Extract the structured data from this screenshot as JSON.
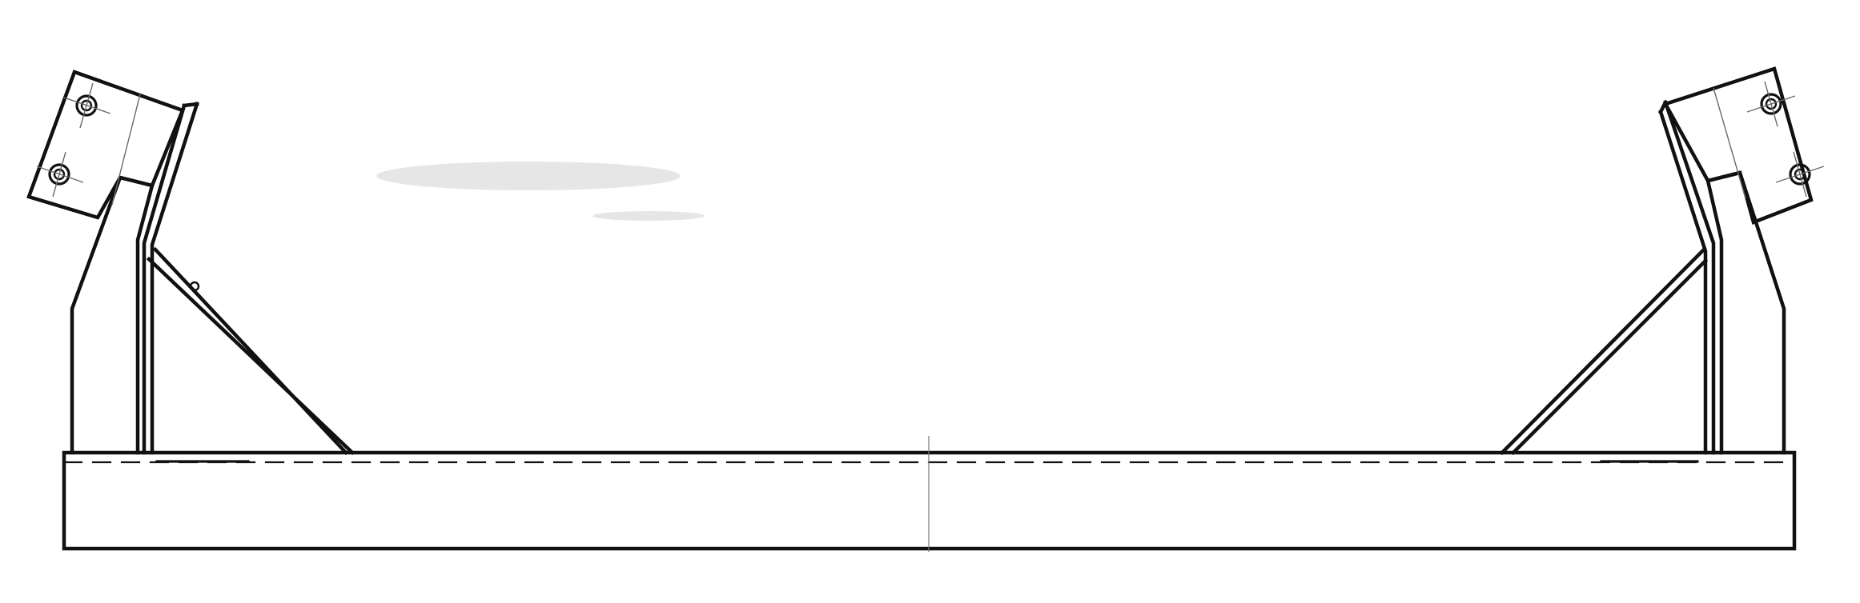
{
  "drawing": {
    "line_color": "#111111",
    "background_color": "#ffffff",
    "components": [
      "base-beam",
      "left-bracket-plate",
      "left-support-arm",
      "left-diagonal-brace",
      "right-bracket-plate",
      "right-support-arm",
      "right-diagonal-brace",
      "center-line"
    ]
  }
}
